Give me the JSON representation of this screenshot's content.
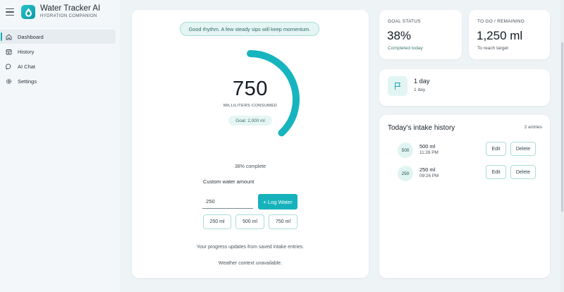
{
  "app": {
    "title": "Water Tracker AI",
    "subtitle": "HYDRATION COMPANION",
    "brand_color": "#16b2bc"
  },
  "sidebar": {
    "items": [
      {
        "label": "Dashboard",
        "icon": "home-icon",
        "active": true
      },
      {
        "label": "History",
        "icon": "calendar-icon",
        "active": false
      },
      {
        "label": "AI Chat",
        "icon": "chat-bubble-icon",
        "active": false
      },
      {
        "label": "Settings",
        "icon": "gear-icon",
        "active": false
      }
    ]
  },
  "main": {
    "status_message": "Good rhythm. A few steady sips will keep momentum.",
    "consumed_value": "750",
    "consumed_label": "MILLILITERS CONSUMED",
    "goal_label": "Goal: 2,000 ml",
    "progress_fraction": 0.38,
    "progress_text": "38% complete",
    "custom_label": "Custom water amount",
    "custom_value": "250",
    "log_button": "+ Log Water",
    "quick_amounts": [
      "250 ml",
      "500 ml",
      "750 ml"
    ],
    "note_progress": "Your progress updates from saved intake entries.",
    "note_weather": "Weather context unavailable."
  },
  "goal_status": {
    "heading": "GOAL STATUS",
    "value": "38%",
    "sub": "Completed today"
  },
  "remaining": {
    "heading": "TO GO / REMAINING",
    "value": "1,250 ml",
    "sub": "To reach target"
  },
  "streak": {
    "icon": "flag-icon",
    "title": "1 day",
    "sub": "1 day"
  },
  "history": {
    "title": "Today's intake history",
    "count": "2 entries",
    "entries": [
      {
        "badge": "500",
        "amount": "500 ml",
        "time": "11:26 PM",
        "edit": "Edit",
        "delete": "Delete"
      },
      {
        "badge": "250",
        "amount": "250 ml",
        "time": "09:26 PM",
        "edit": "Edit",
        "delete": "Delete"
      }
    ]
  }
}
